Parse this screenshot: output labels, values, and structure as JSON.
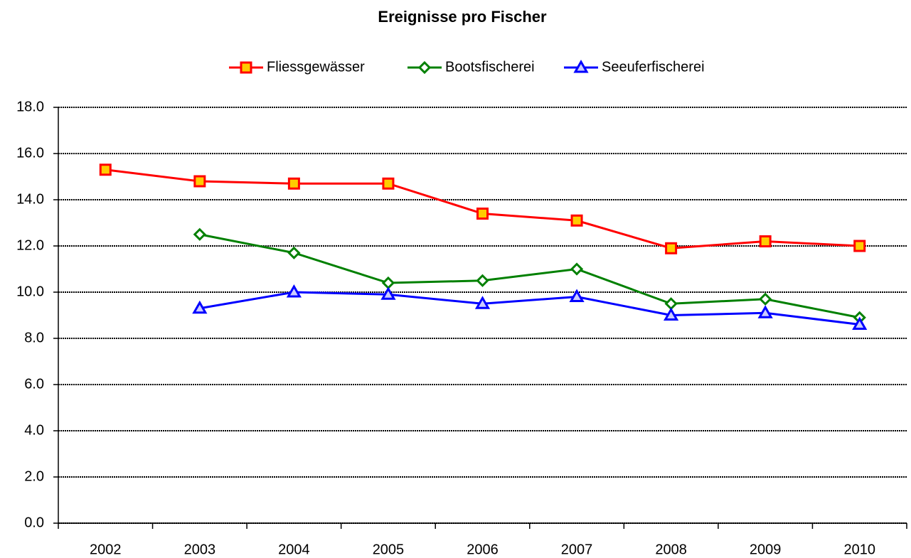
{
  "chart_data": {
    "type": "line",
    "title": "Ereignisse pro Fischer",
    "categories": [
      "2002",
      "2003",
      "2004",
      "2005",
      "2006",
      "2007",
      "2008",
      "2009",
      "2010"
    ],
    "series": [
      {
        "name": "Fliessgewässer",
        "color": "#ff0000",
        "marker": "square",
        "marker_fill": "#ffcc00",
        "values": [
          15.3,
          14.8,
          14.7,
          14.7,
          13.4,
          13.1,
          11.9,
          12.2,
          12.0
        ]
      },
      {
        "name": "Bootsfischerei",
        "color": "#008000",
        "marker": "diamond",
        "marker_fill": "#ffffff",
        "values": [
          null,
          12.5,
          11.7,
          10.4,
          10.5,
          11.0,
          9.5,
          9.7,
          8.9
        ]
      },
      {
        "name": "Seeuferfischerei",
        "color": "#0000ff",
        "marker": "triangle",
        "marker_fill": "#ccccff",
        "values": [
          null,
          9.3,
          10.0,
          9.9,
          9.5,
          9.8,
          9.0,
          9.1,
          8.6
        ]
      }
    ],
    "ylim": [
      0,
      18
    ],
    "yticks": [
      {
        "value": 0,
        "label": "0.0"
      },
      {
        "value": 2,
        "label": "2.0"
      },
      {
        "value": 4,
        "label": "4.0"
      },
      {
        "value": 6,
        "label": "6.0"
      },
      {
        "value": 8,
        "label": "8.0"
      },
      {
        "value": 10,
        "label": "10.0"
      },
      {
        "value": 12,
        "label": "12.0"
      },
      {
        "value": 14,
        "label": "14.0"
      },
      {
        "value": 16,
        "label": "16.0"
      },
      {
        "value": 18,
        "label": "18.0"
      }
    ],
    "grid": true,
    "legend": "top"
  }
}
